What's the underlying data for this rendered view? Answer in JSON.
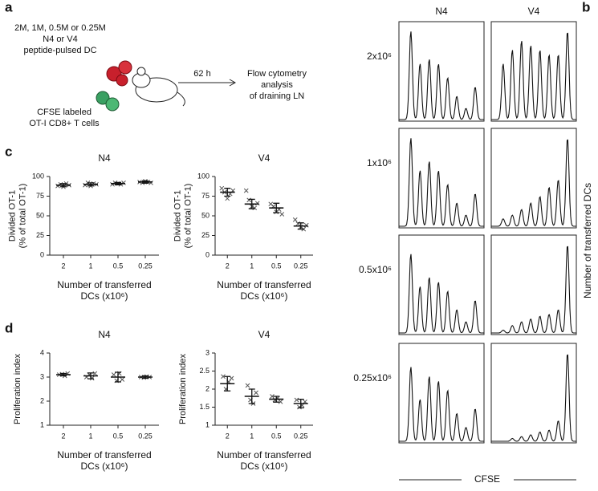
{
  "labels": {
    "a": "a",
    "b": "b",
    "c": "c",
    "d": "d"
  },
  "diagram": {
    "dc_lines": [
      "2M, 1M, 0.5M or 0.25M",
      "N4 or V4",
      "peptide-pulsed DC"
    ],
    "t_lines": [
      "CFSE labeled",
      "OT-I CD8+ T cells"
    ],
    "time": "62 h",
    "readout_lines": [
      "Flow cytometry",
      "analysis",
      "of draining LN"
    ]
  },
  "histograms": {
    "columns": [
      "N4",
      "V4"
    ],
    "rows": [
      "2x10⁶",
      "1x10⁶",
      "0.5x10⁶",
      "0.25x10⁶"
    ],
    "y_label": "Number of transferred DCs",
    "x_label": "CFSE",
    "heights": [
      [
        [
          0.95,
          0.6,
          0.65,
          0.6,
          0.45,
          0.25,
          0.12,
          0.35
        ],
        [
          0.6,
          0.75,
          0.85,
          0.8,
          0.75,
          0.7,
          0.7,
          0.95
        ]
      ],
      [
        [
          0.95,
          0.6,
          0.7,
          0.6,
          0.45,
          0.25,
          0.12,
          0.35
        ],
        [
          0.08,
          0.12,
          0.18,
          0.25,
          0.32,
          0.42,
          0.5,
          0.95
        ]
      ],
      [
        [
          0.85,
          0.5,
          0.6,
          0.55,
          0.45,
          0.25,
          0.12,
          0.35
        ],
        [
          0.03,
          0.08,
          0.12,
          0.15,
          0.18,
          0.2,
          0.25,
          0.95
        ]
      ],
      [
        [
          0.8,
          0.45,
          0.7,
          0.65,
          0.55,
          0.3,
          0.15,
          0.35
        ],
        [
          0.0,
          0.03,
          0.05,
          0.07,
          0.1,
          0.12,
          0.22,
          0.95
        ]
      ]
    ]
  },
  "chart_data": [
    {
      "type": "dot",
      "title": "N4",
      "categories": [
        "2",
        "1",
        "0.5",
        "0.25"
      ],
      "values": [
        89,
        90,
        91,
        93
      ],
      "errors": [
        2,
        2,
        1.5,
        1.5
      ],
      "points": [
        [
          88,
          90,
          87,
          91,
          89
        ],
        [
          89,
          92,
          88,
          91,
          90
        ],
        [
          90,
          92,
          91,
          90,
          92
        ],
        [
          93,
          92,
          94,
          93,
          92
        ]
      ],
      "ylim": [
        0,
        100
      ],
      "yticks": [
        0,
        25,
        50,
        75,
        100
      ],
      "y_label": [
        "Divided OT-1",
        "(% of total OT-1)"
      ],
      "x_label": [
        "Number of transferred",
        "DCs (x10⁶)"
      ]
    },
    {
      "type": "dot",
      "title": "V4",
      "categories": [
        "2",
        "1",
        "0.5",
        "0.25"
      ],
      "values": [
        80,
        65,
        60,
        37
      ],
      "errors": [
        5,
        6,
        6,
        4
      ],
      "points": [
        [
          85,
          80,
          72,
          78,
          82
        ],
        [
          82,
          70,
          62,
          60,
          66
        ],
        [
          65,
          62,
          55,
          58,
          52
        ],
        [
          45,
          40,
          36,
          33,
          38
        ]
      ],
      "ylim": [
        0,
        100
      ],
      "yticks": [
        0,
        25,
        50,
        75,
        100
      ],
      "y_label": [
        "Divided OT-1",
        "(% of total OT-1)"
      ],
      "x_label": [
        "Number of transferred",
        "DCs (x10⁶)"
      ]
    },
    {
      "type": "dot",
      "title": "N4",
      "categories": [
        "2",
        "1",
        "0.5",
        "0.25"
      ],
      "values": [
        3.1,
        3.05,
        3.0,
        3.0
      ],
      "errors": [
        0.05,
        0.12,
        0.2,
        0.05
      ],
      "points": [
        [
          3.1,
          3.12,
          3.05,
          3.15
        ],
        [
          3.0,
          3.1,
          2.95,
          3.15
        ],
        [
          3.1,
          2.85,
          3.15,
          2.9
        ],
        [
          3.0,
          2.98,
          3.02,
          3.0
        ]
      ],
      "ylim": [
        1,
        4
      ],
      "yticks": [
        1,
        2,
        3,
        4
      ],
      "y_label": [
        "Proliferation index"
      ],
      "x_label": [
        "Number of transferred",
        "DCs (x10⁶)"
      ]
    },
    {
      "type": "dot",
      "title": "V4",
      "categories": [
        "2",
        "1",
        "0.5",
        "0.25"
      ],
      "values": [
        2.15,
        1.8,
        1.72,
        1.6
      ],
      "errors": [
        0.2,
        0.2,
        0.08,
        0.12
      ],
      "points": [
        [
          2.35,
          2.0,
          2.2,
          2.3
        ],
        [
          2.1,
          1.7,
          1.6,
          1.9
        ],
        [
          1.8,
          1.7,
          1.75,
          1.65
        ],
        [
          1.7,
          1.5,
          1.55,
          1.65
        ]
      ],
      "ylim": [
        1,
        3
      ],
      "yticks": [
        1,
        1.5,
        2,
        2.5,
        3
      ],
      "y_label": [
        "Proliferation index"
      ],
      "x_label": [
        "Number of transferred",
        "DCs (x10⁶)"
      ]
    }
  ]
}
